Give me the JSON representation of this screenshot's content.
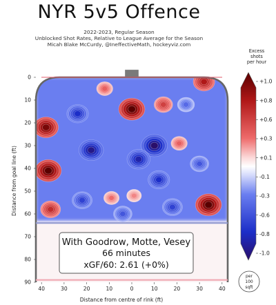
{
  "title": "NYR 5v5 Offence",
  "subtitle_lines": [
    "2022-2023, Regular Season",
    "Unblocked Shot Rates, Relative to League Average for the Season",
    "Micah Blake McCurdy, @IneffectiveMath, hockeyviz.com"
  ],
  "chart_data": {
    "type": "heatmap",
    "title": "NYR 5v5 Offence",
    "xlabel": "Distance from centre of rink (ft)",
    "ylabel": "Distance from goal line (ft)",
    "x_ticks": [
      40,
      30,
      20,
      10,
      0,
      10,
      20,
      30,
      40
    ],
    "y_ticks": [
      0,
      10,
      20,
      30,
      40,
      50,
      60,
      70,
      80,
      90
    ],
    "xlim": [
      -42.5,
      42.5
    ],
    "ylim": [
      0,
      90
    ],
    "colorbar": {
      "title_lines": [
        "Excess",
        "shots",
        "per hour"
      ],
      "ticks": [
        "+1.0",
        "+0.8",
        "+0.6",
        "+0.3",
        "+0.1",
        "-0.1",
        "-0.3",
        "-0.6",
        "-0.8",
        "-1.0"
      ],
      "range": [
        -1.0,
        1.0
      ]
    },
    "hotspots": [
      {
        "x": 0,
        "y": 14,
        "value": 1.0
      },
      {
        "x": 14,
        "y": 12,
        "value": 0.5
      },
      {
        "x": -12,
        "y": 5,
        "value": 0.35
      },
      {
        "x": -38,
        "y": 22,
        "value": 0.9
      },
      {
        "x": -37,
        "y": 41,
        "value": 1.0
      },
      {
        "x": -36,
        "y": 58,
        "value": 0.6
      },
      {
        "x": 34,
        "y": 56,
        "value": 1.0
      },
      {
        "x": 32,
        "y": 2,
        "value": 0.7
      },
      {
        "x": 21,
        "y": 29,
        "value": 0.35
      },
      {
        "x": -9,
        "y": 53,
        "value": 0.3
      },
      {
        "x": 1,
        "y": 52,
        "value": 0.25
      },
      {
        "x": 10,
        "y": 30,
        "value": -1.0
      },
      {
        "x": -18,
        "y": 32,
        "value": -0.9
      },
      {
        "x": 3,
        "y": 36,
        "value": -0.8
      },
      {
        "x": -24,
        "y": 16,
        "value": -0.7
      },
      {
        "x": 12,
        "y": 45,
        "value": -0.7
      },
      {
        "x": -22,
        "y": 54,
        "value": -0.6
      },
      {
        "x": 18,
        "y": 57,
        "value": -0.6
      },
      {
        "x": 30,
        "y": 38,
        "value": -0.5
      },
      {
        "x": 24,
        "y": 12,
        "value": -0.4
      },
      {
        "x": -4,
        "y": 60,
        "value": -0.5
      }
    ],
    "info_box": {
      "line1": "With Goodrow, Motte, Vesey",
      "line2": "66 minutes",
      "line3": "xGF/60: 2.61 (+0%)"
    },
    "scale_note": [
      "per",
      "100",
      "sqft"
    ]
  }
}
